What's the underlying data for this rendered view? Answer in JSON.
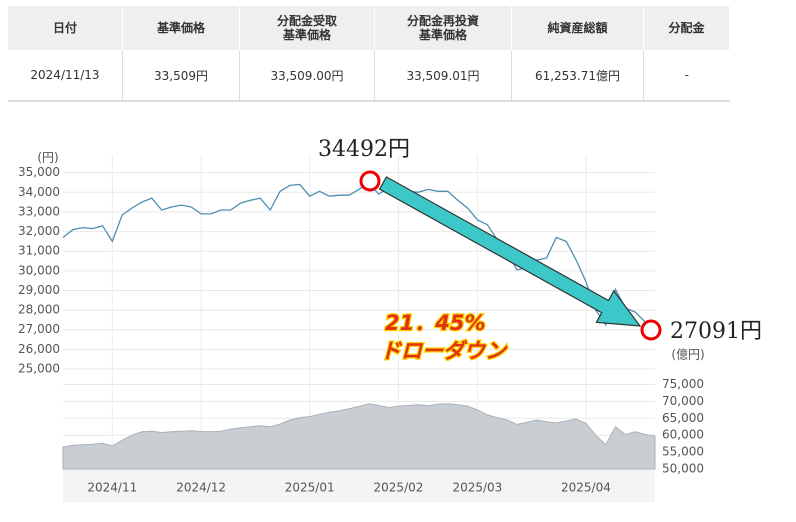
{
  "table": {
    "headers": [
      "日付",
      "基準価格",
      "分配金受取\n基準価格",
      "分配金再投資\n基準価格",
      "純資産総額",
      "分配金"
    ],
    "rows": [
      [
        "2024/11/13",
        "33,509円",
        "33,509.00円",
        "33,509.01円",
        "61,253.71億円",
        "-"
      ]
    ]
  },
  "chart_data": {
    "type": "line",
    "categories": [
      null,
      null,
      null,
      null,
      null,
      "2024/11",
      null,
      null,
      null,
      null,
      null,
      null,
      null,
      null,
      "2024/12",
      null,
      null,
      null,
      null,
      null,
      null,
      null,
      null,
      null,
      null,
      "2025/01",
      null,
      null,
      null,
      null,
      null,
      null,
      null,
      null,
      "2025/02",
      null,
      null,
      null,
      null,
      null,
      null,
      null,
      "2025/03",
      null,
      null,
      null,
      null,
      null,
      null,
      null,
      null,
      null,
      null,
      "2025/04",
      null,
      null,
      null,
      null,
      null,
      null,
      null
    ],
    "series": [
      {
        "color": "#4f8fb0",
        "values": [
          31700,
          32100,
          32200,
          32150,
          32300,
          31500,
          32850,
          33200,
          33500,
          33700,
          33100,
          33250,
          33350,
          33250,
          32900,
          32900,
          33100,
          33100,
          33450,
          33600,
          33700,
          33100,
          34050,
          34350,
          34400,
          33800,
          34050,
          33800,
          33850,
          33850,
          34150,
          34492,
          33900,
          34250,
          33900,
          34050,
          34000,
          34150,
          34050,
          34050,
          33600,
          33200,
          32600,
          32350,
          31600,
          31000,
          30050,
          30150,
          30550,
          30650,
          31700,
          31500,
          30550,
          29450,
          28000,
          27250,
          29050,
          28100,
          27900,
          27400,
          27091
        ]
      },
      {
        "color": "#c9ced3",
        "axis": "y2",
        "type": "area",
        "values": [
          56500,
          57000,
          57200,
          57300,
          57600,
          56800,
          58500,
          60000,
          61000,
          61200,
          60800,
          61000,
          61200,
          61300,
          61100,
          61000,
          61200,
          61800,
          62200,
          62500,
          62800,
          62500,
          63300,
          64500,
          65200,
          65500,
          66200,
          66800,
          67200,
          67800,
          68500,
          69300,
          68800,
          68200,
          68600,
          68800,
          69000,
          68700,
          69200,
          69300,
          69000,
          68600,
          67500,
          66000,
          65200,
          64500,
          63200,
          63800,
          64500,
          64000,
          63600,
          64200,
          64800,
          63500,
          60000,
          57200,
          62500,
          60200,
          61000,
          60200,
          59800
        ]
      }
    ],
    "y_label": "(円)",
    "y2_label": "(億円)",
    "ylim": [
      25000,
      35900
    ],
    "yticks": [
      {
        "value": 25000,
        "label": "25,000"
      },
      {
        "value": 26000,
        "label": "26,000"
      },
      {
        "value": 27000,
        "label": "27,000"
      },
      {
        "value": 28000,
        "label": "28,000"
      },
      {
        "value": 29000,
        "label": "29,000"
      },
      {
        "value": 30000,
        "label": "30,000"
      },
      {
        "value": 31000,
        "label": "31,000"
      },
      {
        "value": 32000,
        "label": "32,000"
      },
      {
        "value": 33000,
        "label": "33,000"
      },
      {
        "value": 34000,
        "label": "34,000"
      },
      {
        "value": 35000,
        "label": "35,000"
      }
    ],
    "y2lim": [
      50000,
      79000
    ],
    "y2ticks": [
      {
        "value": 50000,
        "label": "50,000"
      },
      {
        "value": 55000,
        "label": "55,000"
      },
      {
        "value": 60000,
        "label": "60,000"
      },
      {
        "value": 65000,
        "label": "65,000"
      },
      {
        "value": 70000,
        "label": "70,000"
      },
      {
        "value": 75000,
        "label": "75,000"
      }
    ],
    "grid": true,
    "annotations": [
      "34492円",
      "27091円",
      "21．45%",
      "ドローダウン"
    ]
  }
}
